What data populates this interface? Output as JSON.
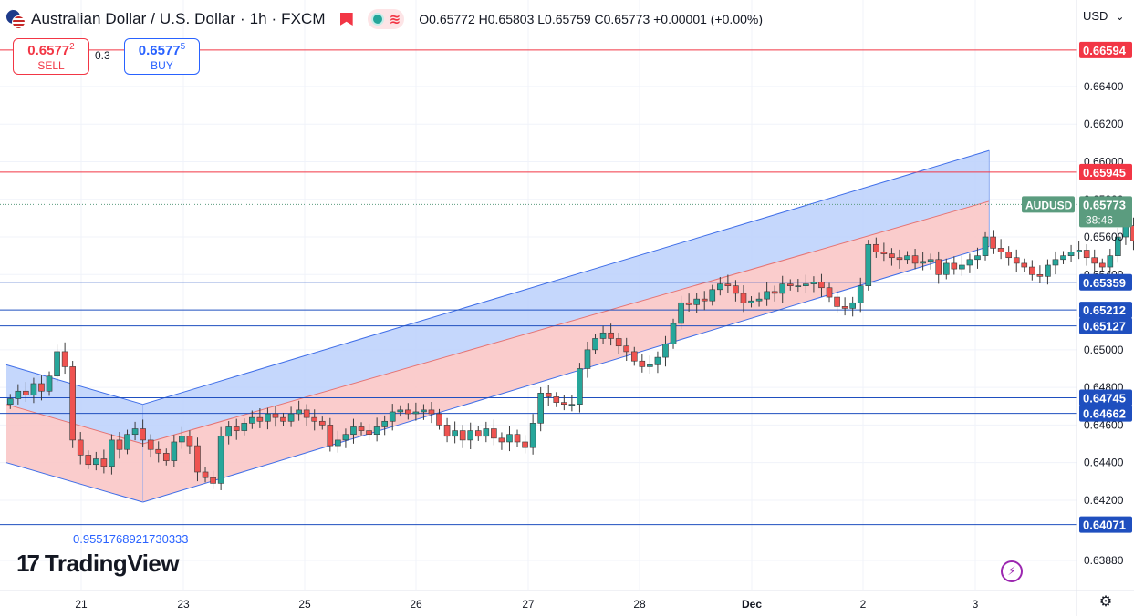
{
  "header": {
    "symbol": "Australian Dollar / U.S. Dollar · 1h · FXCM",
    "ohlc": "O0.65772 H0.65803 L0.65759 C0.65773 +0.00001 (+0.00%)"
  },
  "trade": {
    "sell_price": "0.6577",
    "sell_sup": "2",
    "sell_label": "SELL",
    "spread": "0.3",
    "buy_price": "0.6577",
    "buy_sup": "5",
    "buy_label": "BUY"
  },
  "currency": "USD",
  "logo": {
    "mark": "17",
    "text": "TradingView"
  },
  "icons": {
    "settings": "gear-icon",
    "alert": "bolt-icon",
    "flag": "flag-icon",
    "symbol": "aud-usd-flag-icon"
  },
  "colors": {
    "up": "#26a69a",
    "down": "#ef5350",
    "red_line": "#f23645",
    "blue_line": "#2962ff",
    "upper_fill": "#bbd0fc",
    "lower_fill": "#f9c7c6",
    "price_tag": "#5b9c7f",
    "level_tag": "#2962ff"
  },
  "chart_data": {
    "type": "candlestick",
    "ylim": [
      0.6372,
      0.6686
    ],
    "y_ticks": [
      "0.66400",
      "0.66200",
      "0.66000",
      "0.65800",
      "0.65600",
      "0.65400",
      "0.65000",
      "0.64800",
      "0.64600",
      "0.64400",
      "0.64200",
      "0.63880"
    ],
    "x_labels": [
      "21",
      "23",
      "25",
      "26",
      "27",
      "28",
      "Dec",
      "2",
      "3"
    ],
    "symbol_label": "AUDUSD",
    "last_price": "0.65773",
    "countdown": "38:46",
    "annotation": "0.9551768921730333",
    "resistance_levels": [
      {
        "value": 0.66594,
        "label": "0.66594"
      },
      {
        "value": 0.65945,
        "label": "0.65945"
      }
    ],
    "support_levels": [
      {
        "value": 0.65359,
        "label": "0.65359"
      },
      {
        "value": 0.65212,
        "label": "0.65212"
      },
      {
        "value": 0.65127,
        "label": "0.65127"
      },
      {
        "value": 0.64745,
        "label": "0.64745"
      },
      {
        "value": 0.64662,
        "label": "0.64662"
      },
      {
        "value": 0.64071,
        "label": "0.64071"
      }
    ],
    "channels": [
      {
        "name": "down-channel",
        "start": {
          "t": 0,
          "upper": 0.6492,
          "mid": 0.6471,
          "lower": 0.644
        },
        "end": {
          "t": 17.5,
          "upper": 0.6471,
          "mid": 0.645,
          "lower": 0.6419
        }
      },
      {
        "name": "up-channel",
        "start": {
          "t": 17.5,
          "upper": 0.6471,
          "mid": 0.645,
          "lower": 0.6419
        },
        "end": {
          "t": 126,
          "upper": 0.6606,
          "mid": 0.6579,
          "lower": 0.6555
        }
      }
    ],
    "candles_anchor_note": "close path estimated from chart",
    "closes": [
      0.6474,
      0.6478,
      0.6476,
      0.6482,
      0.6478,
      0.6486,
      0.6499,
      0.6491,
      0.6452,
      0.6444,
      0.6439,
      0.6442,
      0.6438,
      0.6452,
      0.6447,
      0.6455,
      0.6458,
      0.6452,
      0.6447,
      0.6445,
      0.6441,
      0.6451,
      0.6454,
      0.6449,
      0.6435,
      0.6432,
      0.6429,
      0.6454,
      0.6459,
      0.6457,
      0.6461,
      0.6464,
      0.6462,
      0.6466,
      0.6464,
      0.6462,
      0.6466,
      0.6468,
      0.6464,
      0.6462,
      0.646,
      0.6449,
      0.6452,
      0.6455,
      0.6459,
      0.6457,
      0.6455,
      0.6459,
      0.6462,
      0.6467,
      0.6468,
      0.6466,
      0.6467,
      0.6468,
      0.6466,
      0.646,
      0.6454,
      0.6457,
      0.6452,
      0.6457,
      0.6454,
      0.6458,
      0.6453,
      0.6451,
      0.6455,
      0.6451,
      0.6448,
      0.6461,
      0.6477,
      0.6475,
      0.6472,
      0.6471,
      0.6471,
      0.649,
      0.65,
      0.6506,
      0.6509,
      0.6506,
      0.6502,
      0.6499,
      0.6494,
      0.6491,
      0.6492,
      0.6496,
      0.6503,
      0.6514,
      0.6525,
      0.6524,
      0.6527,
      0.6526,
      0.6532,
      0.6535,
      0.6534,
      0.653,
      0.6525,
      0.6526,
      0.6527,
      0.6531,
      0.653,
      0.6535,
      0.6534,
      0.6534,
      0.6535,
      0.6536,
      0.6533,
      0.6528,
      0.6523,
      0.6522,
      0.6525,
      0.6534,
      0.6556,
      0.6552,
      0.6551,
      0.6549,
      0.6548,
      0.655,
      0.6546,
      0.6547,
      0.6548,
      0.654,
      0.6546,
      0.6543,
      0.6545,
      0.6548,
      0.655,
      0.656,
      0.6554,
      0.6552,
      0.6549,
      0.6546,
      0.6544,
      0.654,
      0.6539,
      0.6545,
      0.6548,
      0.655,
      0.6552,
      0.6553,
      0.6549,
      0.6546,
      0.6544,
      0.655,
      0.656,
      0.6566,
      0.6558,
      0.6555,
      0.656,
      0.6561,
      0.6566,
      0.657,
      0.6572,
      0.6575,
      0.6579,
      0.658,
      0.6577
    ]
  }
}
